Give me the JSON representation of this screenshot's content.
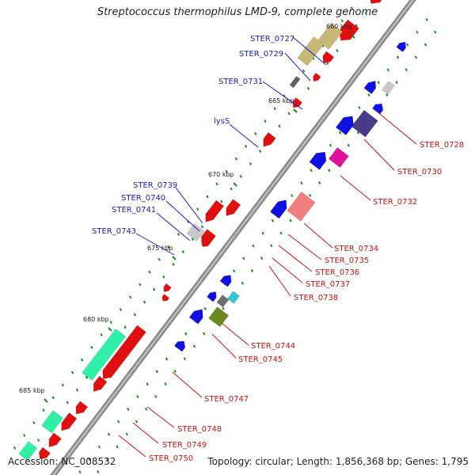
{
  "title": "Streptococcus thermophilus LMD-9, complete genome",
  "footer": {
    "accession": "Accession: NC_008532",
    "summary": "Topology: circular; Length: 1,856,368 bp; Genes: 1,795"
  },
  "colors": {
    "backbone": "#888888",
    "forward_label": "#1a1acc",
    "reverse_label": "#cc1111",
    "tick": "#1a8a1a"
  },
  "kbp_labels": [
    "660 kbp",
    "665 kbp",
    "670 kbp",
    "675 kbp",
    "680 kbp",
    "685 kbp"
  ],
  "forward_labels": [
    "STER_0727",
    "STER_0729",
    "STER_0731",
    "lysS",
    "STER_0739",
    "STER_0740",
    "STER_0741",
    "STER_0743"
  ],
  "reverse_labels": [
    "STER_0728",
    "STER_0730",
    "STER_0732",
    "STER_0734",
    "STER_0735",
    "STER_0736",
    "STER_0737",
    "STER_0738",
    "STER_0744",
    "STER_0745",
    "STER_0747",
    "STER_0748",
    "STER_0749",
    "STER_0750"
  ]
}
